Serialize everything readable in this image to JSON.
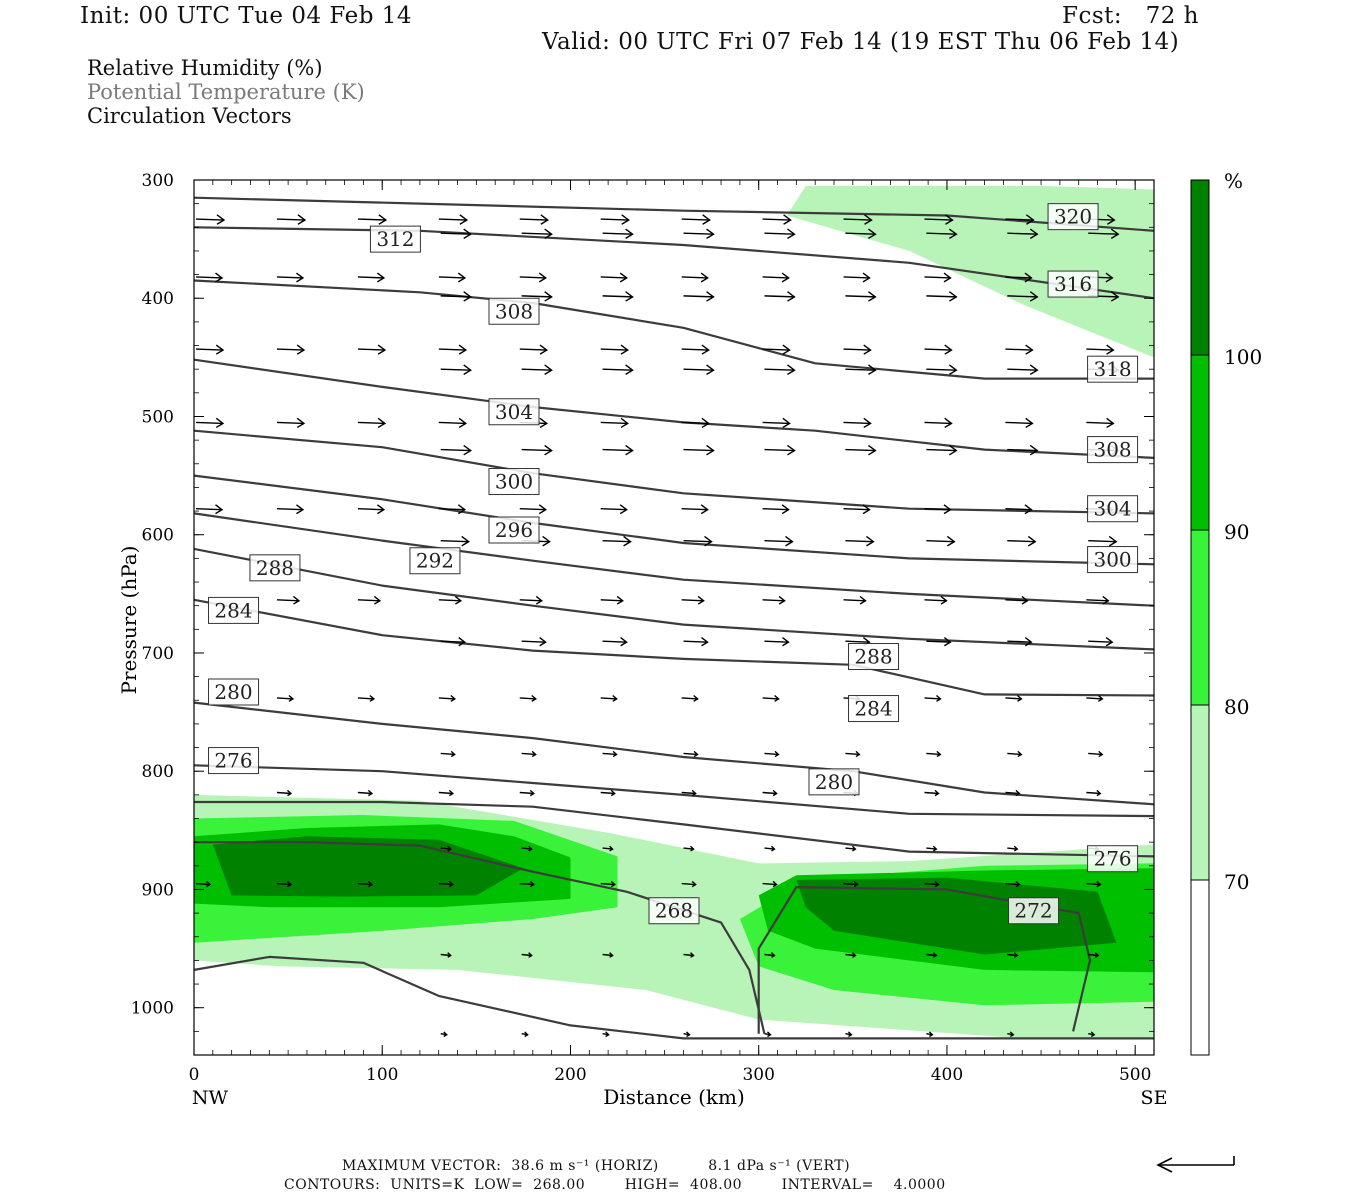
{
  "header": {
    "init": "Init: 00 UTC Tue 04 Feb 14",
    "fcst": "Fcst:   72 h",
    "valid": "Valid: 00 UTC Fri 07 Feb 14 (19 EST Thu 06 Feb 14)"
  },
  "legend": {
    "rh": "Relative Humidity (%)",
    "theta": "Potential Temperature (K)",
    "vectors": "Circulation Vectors"
  },
  "footer": {
    "max_vector": "MAXIMUM VECTOR:  38.6 m s⁻¹ (HORIZ)          8.1 dPa s⁻¹ (VERT)",
    "contours": "CONTOURS:  UNITS=K  LOW=  268.00        HIGH=  408.00        INTERVAL=    4.0000"
  },
  "colors": {
    "rh70": "#b8f4b8",
    "rh80": "#3af23a",
    "rh90": "#00be00",
    "rh100": "#008200",
    "contour": "#3c3c3c"
  },
  "chart_data": {
    "type": "contour",
    "xlabel": "Distance (km)",
    "ylabel": "Pressure (hPa)",
    "x_ticks": [
      0,
      100,
      200,
      300,
      400,
      500
    ],
    "y_ticks": [
      300,
      400,
      500,
      600,
      700,
      800,
      900,
      1000
    ],
    "xlim": [
      0,
      510
    ],
    "ylim": [
      300,
      1040
    ],
    "y_inverted": true,
    "x_end_labels": {
      "left": "NW",
      "right": "SE"
    },
    "colorbar": {
      "unit": "%",
      "levels": [
        70,
        80,
        90,
        100
      ]
    },
    "contour_labels": [
      {
        "value": "320",
        "x": 467,
        "p": 331
      },
      {
        "value": "316",
        "x": 467,
        "p": 388
      },
      {
        "value": "312",
        "x": 107,
        "p": 350
      },
      {
        "value": "308",
        "x": 170,
        "p": 411
      },
      {
        "value": "304",
        "x": 170,
        "p": 496
      },
      {
        "value": "300",
        "x": 170,
        "p": 555
      },
      {
        "value": "296",
        "x": 170,
        "p": 596
      },
      {
        "value": "292",
        "x": 128,
        "p": 622
      },
      {
        "value": "288",
        "x": 43,
        "p": 628
      },
      {
        "value": "284",
        "x": 21,
        "p": 664
      },
      {
        "value": "280",
        "x": 21,
        "p": 733
      },
      {
        "value": "276",
        "x": 21,
        "p": 791
      },
      {
        "value": "318",
        "x": 488,
        "p": 460
      },
      {
        "value": "308",
        "x": 488,
        "p": 528
      },
      {
        "value": "304",
        "x": 488,
        "p": 578
      },
      {
        "value": "300",
        "x": 488,
        "p": 621
      },
      {
        "value": "288",
        "x": 361,
        "p": 703
      },
      {
        "value": "284",
        "x": 361,
        "p": 747
      },
      {
        "value": "280",
        "x": 340,
        "p": 809
      },
      {
        "value": "276",
        "x": 488,
        "p": 874
      },
      {
        "value": "268",
        "x": 255,
        "p": 918
      },
      {
        "value": "272",
        "x": 446,
        "p": 918
      }
    ],
    "isentropes": [
      [
        [
          0,
          315
        ],
        [
          120,
          320
        ],
        [
          260,
          326
        ],
        [
          400,
          330
        ],
        [
          510,
          343
        ]
      ],
      [
        [
          0,
          340
        ],
        [
          120,
          343
        ],
        [
          260,
          355
        ],
        [
          380,
          370
        ],
        [
          510,
          400
        ]
      ],
      [
        [
          0,
          385
        ],
        [
          120,
          395
        ],
        [
          180,
          404
        ],
        [
          260,
          425
        ],
        [
          330,
          455
        ],
        [
          420,
          468
        ],
        [
          510,
          468
        ]
      ],
      [
        [
          0,
          452
        ],
        [
          100,
          475
        ],
        [
          180,
          492
        ],
        [
          260,
          505
        ],
        [
          330,
          512
        ],
        [
          420,
          528
        ],
        [
          510,
          535
        ]
      ],
      [
        [
          0,
          512
        ],
        [
          100,
          526
        ],
        [
          180,
          548
        ],
        [
          260,
          565
        ],
        [
          380,
          578
        ],
        [
          510,
          582
        ]
      ],
      [
        [
          0,
          550
        ],
        [
          100,
          570
        ],
        [
          180,
          590
        ],
        [
          260,
          607
        ],
        [
          380,
          620
        ],
        [
          510,
          625
        ]
      ],
      [
        [
          0,
          582
        ],
        [
          100,
          605
        ],
        [
          180,
          622
        ],
        [
          260,
          638
        ],
        [
          380,
          650
        ],
        [
          510,
          660
        ]
      ],
      [
        [
          0,
          612
        ],
        [
          100,
          643
        ],
        [
          180,
          660
        ],
        [
          260,
          676
        ],
        [
          380,
          688
        ],
        [
          510,
          697
        ]
      ],
      [
        [
          0,
          655
        ],
        [
          100,
          685
        ],
        [
          180,
          698
        ],
        [
          260,
          705
        ],
        [
          350,
          710
        ],
        [
          420,
          735
        ],
        [
          510,
          736
        ]
      ],
      [
        [
          0,
          742
        ],
        [
          100,
          760
        ],
        [
          180,
          772
        ],
        [
          260,
          788
        ],
        [
          350,
          800
        ],
        [
          420,
          818
        ],
        [
          510,
          828
        ]
      ],
      [
        [
          0,
          795
        ],
        [
          100,
          800
        ],
        [
          180,
          810
        ],
        [
          260,
          820
        ],
        [
          380,
          836
        ],
        [
          510,
          838
        ]
      ],
      [
        [
          0,
          826
        ],
        [
          100,
          826
        ],
        [
          180,
          830
        ],
        [
          260,
          845
        ],
        [
          380,
          868
        ],
        [
          510,
          872
        ]
      ],
      [
        [
          0,
          860
        ],
        [
          60,
          860
        ],
        [
          120,
          863
        ],
        [
          180,
          885
        ],
        [
          230,
          902
        ],
        [
          280,
          928
        ],
        [
          295,
          968
        ],
        [
          303,
          1022
        ]
      ],
      [
        [
          0,
          968
        ],
        [
          40,
          957
        ],
        [
          90,
          962
        ],
        [
          130,
          990
        ],
        [
          200,
          1015
        ],
        [
          260,
          1026
        ],
        [
          510,
          1026
        ]
      ],
      [
        [
          300,
          1022
        ],
        [
          300,
          950
        ],
        [
          320,
          898
        ],
        [
          400,
          900
        ],
        [
          470,
          920
        ],
        [
          476,
          960
        ],
        [
          467,
          1020
        ]
      ]
    ],
    "humidity_regions": [
      {
        "level": 70,
        "polygon": [
          [
            0,
            820
          ],
          [
            120,
            825
          ],
          [
            220,
            852
          ],
          [
            300,
            878
          ],
          [
            380,
            876
          ],
          [
            510,
            862
          ],
          [
            510,
            1025
          ],
          [
            440,
            1026
          ],
          [
            300,
            1010
          ],
          [
            240,
            985
          ],
          [
            140,
            968
          ],
          [
            45,
            965
          ],
          [
            0,
            960
          ]
        ]
      },
      {
        "level": 70,
        "polygon": [
          [
            315,
            330
          ],
          [
            325,
            305
          ],
          [
            450,
            305
          ],
          [
            510,
            308
          ],
          [
            510,
            450
          ],
          [
            440,
            405
          ],
          [
            380,
            360
          ]
        ]
      },
      {
        "level": 80,
        "polygon": [
          [
            0,
            840
          ],
          [
            90,
            837
          ],
          [
            170,
            842
          ],
          [
            225,
            872
          ],
          [
            225,
            915
          ],
          [
            180,
            925
          ],
          [
            100,
            935
          ],
          [
            0,
            945
          ]
        ]
      },
      {
        "level": 80,
        "polygon": [
          [
            290,
            925
          ],
          [
            325,
            892
          ],
          [
            420,
            880
          ],
          [
            510,
            878
          ],
          [
            510,
            995
          ],
          [
            420,
            998
          ],
          [
            340,
            985
          ],
          [
            300,
            965
          ]
        ]
      },
      {
        "level": 90,
        "polygon": [
          [
            0,
            855
          ],
          [
            60,
            848
          ],
          [
            130,
            845
          ],
          [
            170,
            855
          ],
          [
            200,
            873
          ],
          [
            200,
            908
          ],
          [
            130,
            915
          ],
          [
            40,
            915
          ],
          [
            0,
            912
          ]
        ]
      },
      {
        "level": 90,
        "polygon": [
          [
            300,
            905
          ],
          [
            320,
            888
          ],
          [
            420,
            884
          ],
          [
            510,
            882
          ],
          [
            510,
            970
          ],
          [
            420,
            968
          ],
          [
            330,
            950
          ],
          [
            305,
            935
          ]
        ]
      },
      {
        "level": 100,
        "polygon": [
          [
            10,
            862
          ],
          [
            60,
            855
          ],
          [
            130,
            858
          ],
          [
            175,
            882
          ],
          [
            150,
            905
          ],
          [
            80,
            906
          ],
          [
            20,
            905
          ]
        ]
      },
      {
        "level": 100,
        "polygon": [
          [
            320,
            892
          ],
          [
            400,
            890
          ],
          [
            480,
            902
          ],
          [
            490,
            945
          ],
          [
            420,
            955
          ],
          [
            340,
            935
          ],
          [
            325,
            915
          ]
        ]
      }
    ],
    "vector_rows": [
      {
        "p": 333,
        "start": 0,
        "dx": 43,
        "len": 28
      },
      {
        "p": 345,
        "start": 130,
        "dx": 43,
        "len": 30
      },
      {
        "p": 382,
        "start": 0,
        "dx": 43,
        "len": 26
      },
      {
        "p": 398,
        "start": 130,
        "dx": 43,
        "len": 30
      },
      {
        "p": 443,
        "start": 0,
        "dx": 43,
        "len": 27
      },
      {
        "p": 460,
        "start": 130,
        "dx": 43,
        "len": 30
      },
      {
        "p": 505,
        "start": 0,
        "dx": 43,
        "len": 27
      },
      {
        "p": 528,
        "start": 130,
        "dx": 43,
        "len": 30
      },
      {
        "p": 578,
        "start": 0,
        "dx": 43,
        "len": 26
      },
      {
        "p": 605,
        "start": 130,
        "dx": 43,
        "len": 28
      },
      {
        "p": 655,
        "start": 43,
        "dx": 43,
        "len": 22
      },
      {
        "p": 690,
        "start": 130,
        "dx": 43,
        "len": 24
      },
      {
        "p": 738,
        "start": 43,
        "dx": 43,
        "len": 16
      },
      {
        "p": 785,
        "start": 130,
        "dx": 43,
        "len": 14
      },
      {
        "p": 818,
        "start": 43,
        "dx": 43,
        "len": 14
      },
      {
        "p": 865,
        "start": 130,
        "dx": 43,
        "len": 10
      },
      {
        "p": 895,
        "start": 0,
        "dx": 43,
        "len": 14
      },
      {
        "p": 955,
        "start": 130,
        "dx": 43,
        "len": 10
      },
      {
        "p": 1022,
        "start": 130,
        "dx": 43,
        "len": 6
      }
    ],
    "max_vector": {
      "horiz_m_s": 38.6,
      "vert_dPa_s": 8.1
    }
  }
}
